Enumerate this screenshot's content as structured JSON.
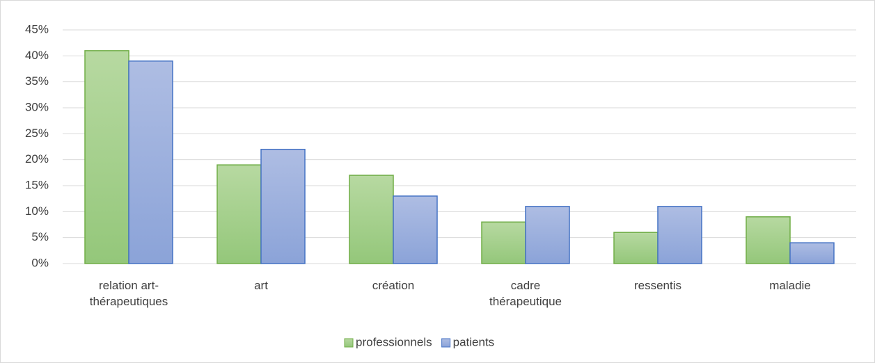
{
  "chart_data": {
    "type": "bar",
    "categories": [
      "relation art-thérapeutiques",
      "art",
      "création",
      "cadre thérapeutique",
      "ressentis",
      "maladie"
    ],
    "series": [
      {
        "name": "professionnels",
        "color": "#70ad47",
        "values": [
          41,
          19,
          17,
          8,
          6,
          9
        ]
      },
      {
        "name": "patients",
        "color": "#4472c4",
        "values": [
          39,
          22,
          13,
          11,
          11,
          4
        ]
      }
    ],
    "ylim": [
      0,
      45
    ],
    "yticks": [
      {
        "value": 0,
        "label": "0%"
      },
      {
        "value": 5,
        "label": "5%"
      },
      {
        "value": 10,
        "label": "10%"
      },
      {
        "value": 15,
        "label": "15%"
      },
      {
        "value": 20,
        "label": "20%"
      },
      {
        "value": 25,
        "label": "25%"
      },
      {
        "value": 30,
        "label": "30%"
      },
      {
        "value": 35,
        "label": "35%"
      },
      {
        "value": 40,
        "label": "40%"
      },
      {
        "value": 45,
        "label": "45%"
      }
    ],
    "grid": true,
    "legend": "bottom"
  }
}
